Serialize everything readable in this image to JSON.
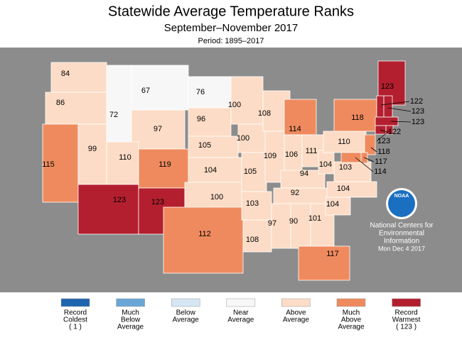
{
  "header": {
    "title": "Statewide Average Temperature Ranks",
    "subtitle": "September–November 2017",
    "period": "Period: 1895–2017"
  },
  "map": {
    "states": [
      {
        "rank": 84,
        "class": 4
      },
      {
        "rank": 86,
        "class": 4
      },
      {
        "rank": 115,
        "class": 5
      },
      {
        "rank": 99,
        "class": 4
      },
      {
        "rank": 72,
        "class": 3
      },
      {
        "rank": 67,
        "class": 3
      },
      {
        "rank": 97,
        "class": 4
      },
      {
        "rank": 110,
        "class": 4
      },
      {
        "rank": 123,
        "class": 6
      },
      {
        "rank": 119,
        "class": 5
      },
      {
        "rank": 123,
        "class": 6
      },
      {
        "rank": 76,
        "class": 3
      },
      {
        "rank": 96,
        "class": 4
      },
      {
        "rank": 105,
        "class": 4
      },
      {
        "rank": 104,
        "class": 4
      },
      {
        "rank": 100,
        "class": 4
      },
      {
        "rank": 112,
        "class": 5
      },
      {
        "rank": 100,
        "class": 4
      },
      {
        "rank": 100,
        "class": 4
      },
      {
        "rank": 105,
        "class": 4
      },
      {
        "rank": 103,
        "class": 4
      },
      {
        "rank": 108,
        "class": 4
      },
      {
        "rank": 108,
        "class": 4
      },
      {
        "rank": 109,
        "class": 4
      },
      {
        "rank": 114,
        "class": 5
      },
      {
        "rank": 106,
        "class": 4
      },
      {
        "rank": 111,
        "class": 4
      },
      {
        "rank": 94,
        "class": 4
      },
      {
        "rank": 92,
        "class": 4
      },
      {
        "rank": 97,
        "class": 4
      },
      {
        "rank": 90,
        "class": 4
      },
      {
        "rank": 101,
        "class": 4
      },
      {
        "rank": 117,
        "class": 5
      },
      {
        "rank": 104,
        "class": 4
      },
      {
        "rank": 104,
        "class": 4
      },
      {
        "rank": 103,
        "class": 4
      },
      {
        "rank": 104,
        "class": 4
      },
      {
        "rank": 110,
        "class": 4
      },
      {
        "rank": 118,
        "class": 5
      },
      {
        "rank": 123,
        "class": 6
      },
      {
        "rank": 122,
        "class": 6
      },
      {
        "rank": 123,
        "class": 6
      },
      {
        "rank": 123,
        "class": 6
      },
      {
        "rank": 122,
        "class": 6
      },
      {
        "rank": 123,
        "class": 6
      },
      {
        "rank": 118,
        "class": 5
      },
      {
        "rank": 117,
        "class": 5
      },
      {
        "rank": 114,
        "class": 5
      }
    ]
  },
  "legend": {
    "entries": [
      {
        "lines": [
          "Record",
          "Coldest",
          "( 1 )"
        ],
        "color": "#1f64ae"
      },
      {
        "lines": [
          "Much",
          "Below",
          "Average"
        ],
        "color": "#6aa6d6"
      },
      {
        "lines": [
          "Below",
          "Average"
        ],
        "color": "#d6e6f3"
      },
      {
        "lines": [
          "Near",
          "Average"
        ],
        "color": "#f7f7f7"
      },
      {
        "lines": [
          "Above",
          "Average"
        ],
        "color": "#fcdcc6"
      },
      {
        "lines": [
          "Much",
          "Above",
          "Average"
        ],
        "color": "#ef8a5e"
      },
      {
        "lines": [
          "Record",
          "Warmest",
          "( 123 )"
        ],
        "color": "#b31f2f"
      }
    ]
  },
  "credit": {
    "logo": "NOAA",
    "lines": [
      "National Centers for",
      "Environmental",
      "Information",
      "Mon Dec  4 2017"
    ]
  }
}
